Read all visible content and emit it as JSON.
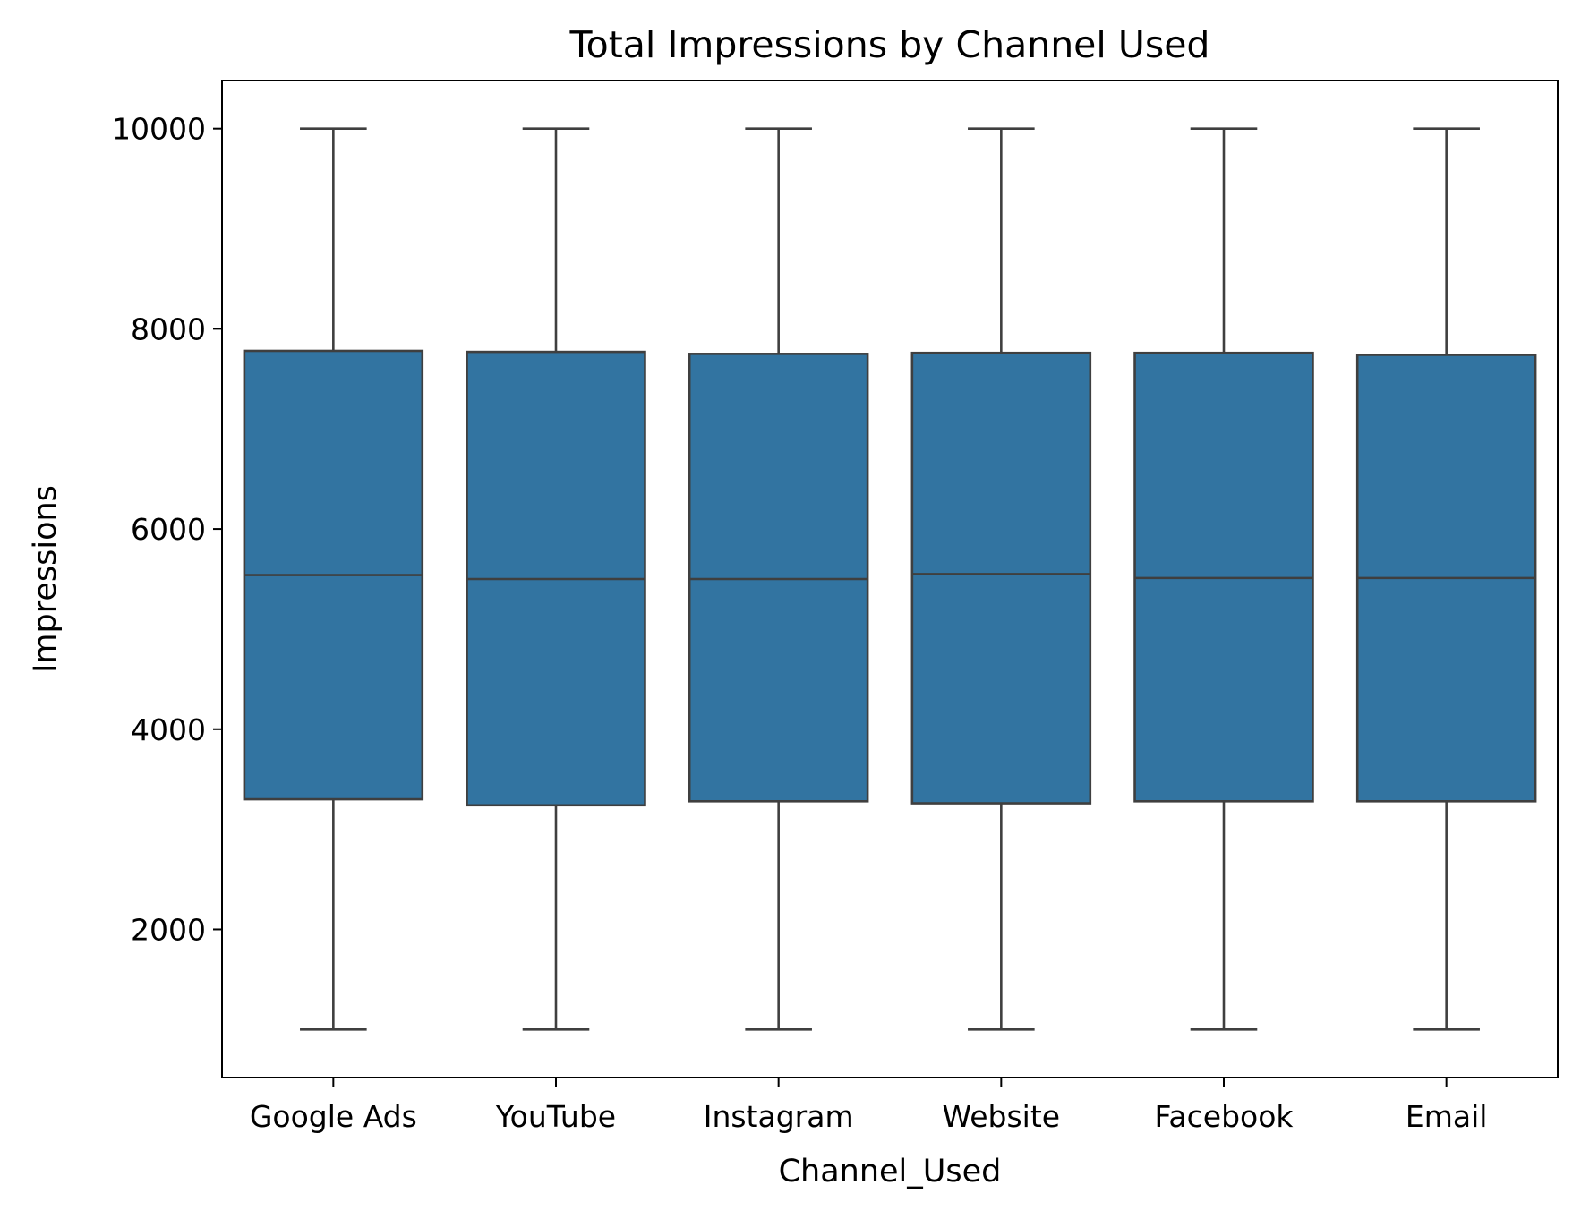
{
  "chart_data": {
    "type": "box",
    "title": "Total Impressions by Channel Used",
    "xlabel": "Channel_Used",
    "ylabel": "Impressions",
    "ylim": [
      520,
      10480
    ],
    "yticks": [
      2000,
      4000,
      6000,
      8000,
      10000
    ],
    "grid": false,
    "legend": "none",
    "colors": {
      "box_fill": "#3274a1",
      "line": "#3f3f3f",
      "axes": "#000000"
    },
    "categories": [
      "Google Ads",
      "YouTube",
      "Instagram",
      "Website",
      "Facebook",
      "Email"
    ],
    "boxes": [
      {
        "category": "Google Ads",
        "min": 1000,
        "q1": 3300,
        "median": 5540,
        "q3": 7780,
        "max": 10000
      },
      {
        "category": "YouTube",
        "min": 1000,
        "q1": 3240,
        "median": 5500,
        "q3": 7770,
        "max": 10000
      },
      {
        "category": "Instagram",
        "min": 1000,
        "q1": 3280,
        "median": 5500,
        "q3": 7750,
        "max": 10000
      },
      {
        "category": "Website",
        "min": 1000,
        "q1": 3260,
        "median": 5550,
        "q3": 7760,
        "max": 10000
      },
      {
        "category": "Facebook",
        "min": 1000,
        "q1": 3280,
        "median": 5510,
        "q3": 7760,
        "max": 10000
      },
      {
        "category": "Email",
        "min": 1000,
        "q1": 3280,
        "median": 5510,
        "q3": 7740,
        "max": 10000
      }
    ]
  }
}
